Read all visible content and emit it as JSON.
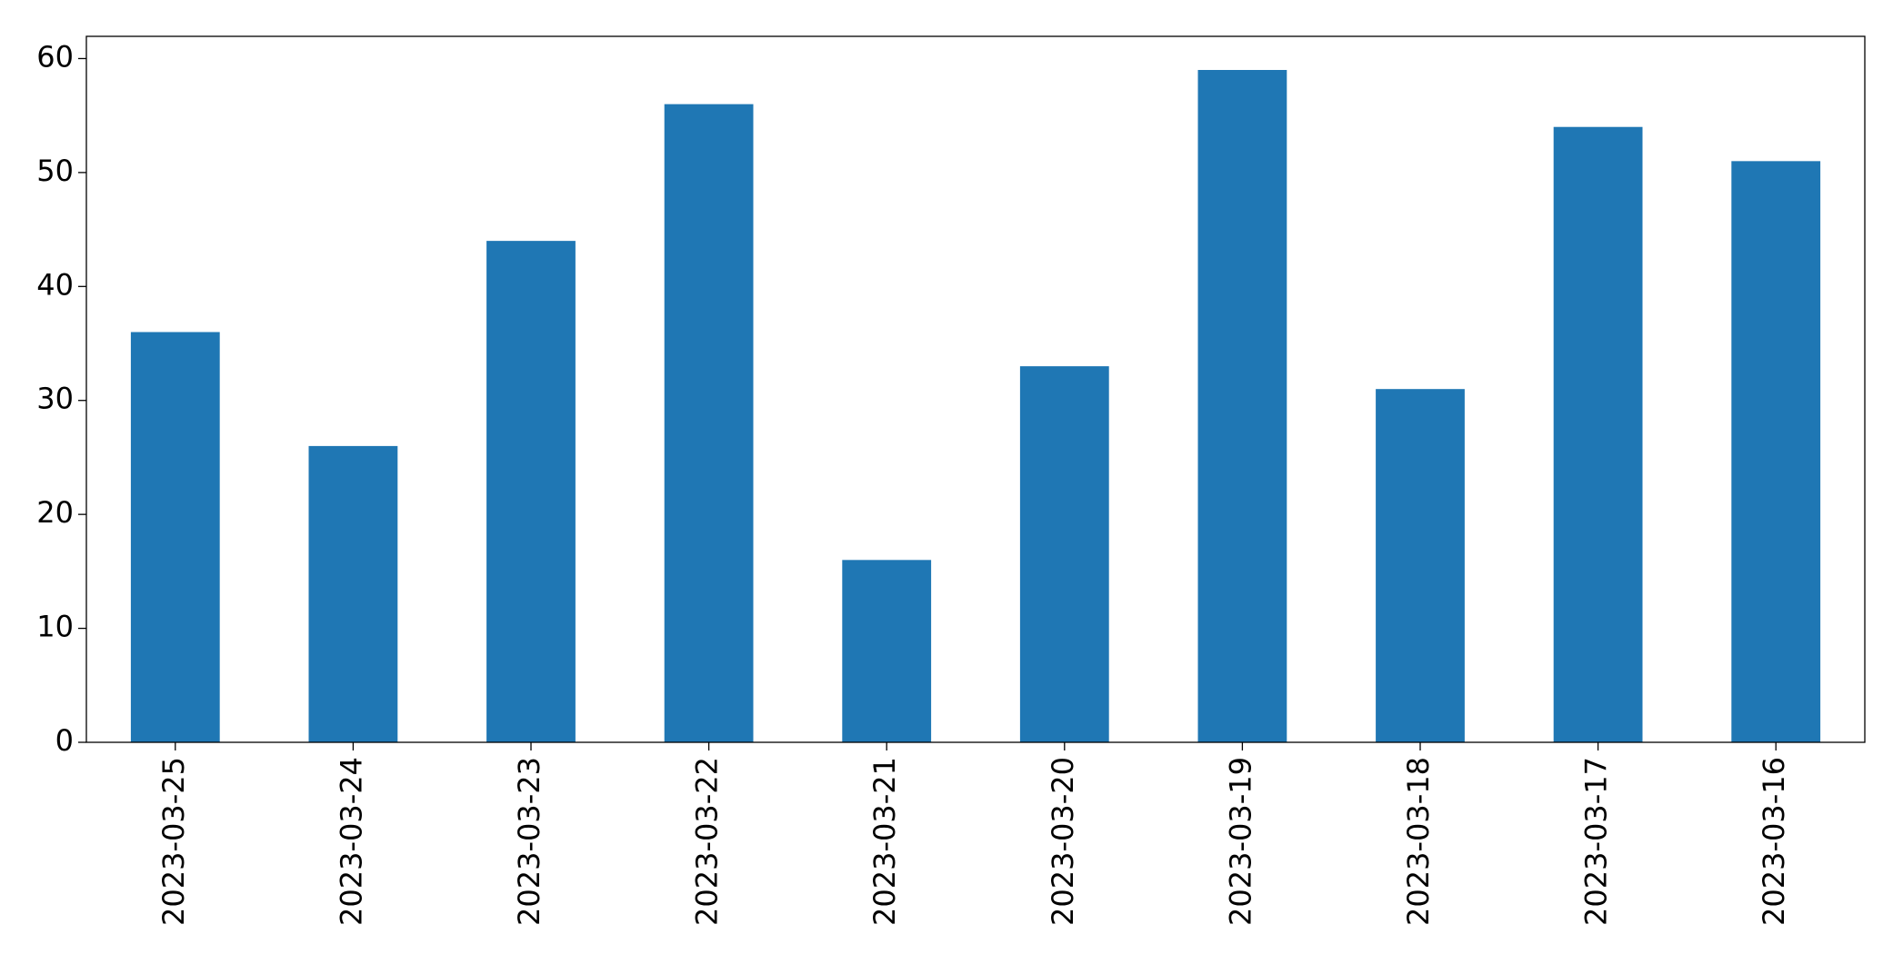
{
  "chart_data": {
    "type": "bar",
    "categories": [
      "2023-03-25",
      "2023-03-24",
      "2023-03-23",
      "2023-03-22",
      "2023-03-21",
      "2023-03-20",
      "2023-03-19",
      "2023-03-18",
      "2023-03-17",
      "2023-03-16"
    ],
    "values": [
      36,
      26,
      44,
      56,
      16,
      33,
      59,
      31,
      54,
      51
    ],
    "color": "#1f77b4",
    "ylim": [
      0,
      61.95
    ],
    "yticks": [
      0,
      10,
      20,
      30,
      40,
      50,
      60
    ],
    "grid": false
  }
}
